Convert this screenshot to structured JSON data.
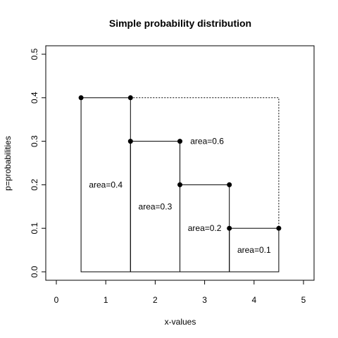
{
  "chart_data": {
    "type": "line",
    "title": "Simple probability distribution",
    "xlabel": "x-values",
    "ylabel": "p=probabilities",
    "xlim": [
      0,
      5
    ],
    "ylim": [
      0,
      0.5
    ],
    "xticks": [
      0,
      1,
      2,
      3,
      4,
      5
    ],
    "xtick_labels": [
      "0",
      "1",
      "2",
      "3",
      "4",
      "5"
    ],
    "yticks": [
      0,
      0.1,
      0.2,
      0.3,
      0.4,
      0.5
    ],
    "ytick_labels": [
      "0.0",
      "0.1",
      "0.2",
      "0.3",
      "0.4",
      "0.5"
    ],
    "grid": false,
    "bars": [
      {
        "x0": 0.5,
        "x1": 1.5,
        "p": 0.4
      },
      {
        "x0": 1.5,
        "x1": 2.5,
        "p": 0.3
      },
      {
        "x0": 2.5,
        "x1": 3.5,
        "p": 0.2
      },
      {
        "x0": 3.5,
        "x1": 4.5,
        "p": 0.1
      }
    ],
    "points": [
      {
        "x": 0.5,
        "y": 0.4
      },
      {
        "x": 1.5,
        "y": 0.4
      },
      {
        "x": 1.5,
        "y": 0.3
      },
      {
        "x": 2.5,
        "y": 0.3
      },
      {
        "x": 2.5,
        "y": 0.2
      },
      {
        "x": 3.5,
        "y": 0.2
      },
      {
        "x": 3.5,
        "y": 0.1
      },
      {
        "x": 4.5,
        "y": 0.1
      }
    ],
    "dotted_outline": [
      {
        "x": 1.5,
        "y": 0.4
      },
      {
        "x": 4.5,
        "y": 0.4
      },
      {
        "x": 4.5,
        "y": 0.1
      }
    ],
    "annotations": [
      {
        "text": "area=0.4",
        "x": 1.0,
        "y": 0.2
      },
      {
        "text": "area=0.3",
        "x": 2.0,
        "y": 0.15
      },
      {
        "text": "area=0.6",
        "x": 3.05,
        "y": 0.3
      },
      {
        "text": "area=0.2",
        "x": 3.0,
        "y": 0.1
      },
      {
        "text": "area=0.1",
        "x": 4.0,
        "y": 0.05
      }
    ]
  }
}
